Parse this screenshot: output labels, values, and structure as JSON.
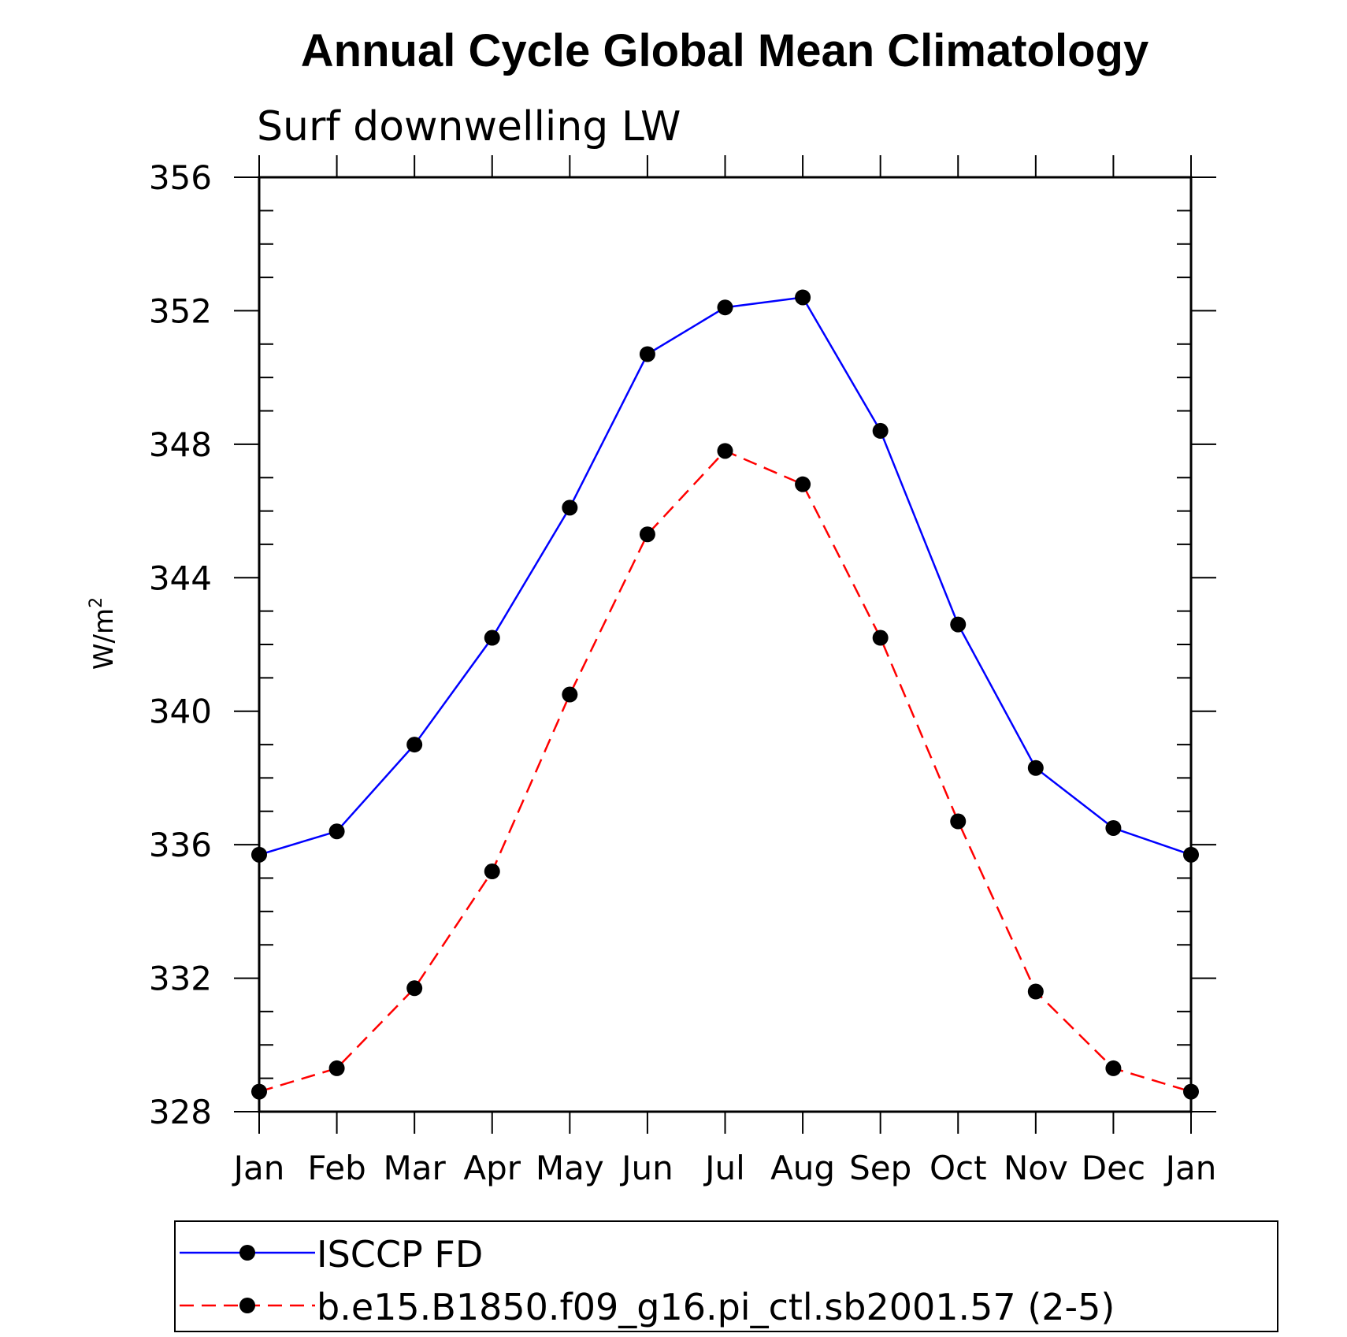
{
  "chart_data": {
    "type": "line",
    "title": "Annual Cycle Global Mean Climatology",
    "subtitle": "Surf downwelling LW",
    "ylabel": "W/m",
    "ylabel_sup": "2",
    "categories": [
      "Jan",
      "Feb",
      "Mar",
      "Apr",
      "May",
      "Jun",
      "Jul",
      "Aug",
      "Sep",
      "Oct",
      "Nov",
      "Dec",
      "Jan"
    ],
    "ylim": [
      328,
      356
    ],
    "yticks": [
      328,
      332,
      336,
      340,
      344,
      348,
      352,
      356
    ],
    "yminor_step": 1,
    "grid": false,
    "legend_position": "bottom",
    "series": [
      {
        "name": "ISCCP FD",
        "color": "#0000ff",
        "dash": "solid",
        "marker": "filled-circle",
        "values": [
          335.7,
          336.4,
          339.0,
          342.2,
          346.1,
          350.7,
          352.1,
          352.4,
          348.4,
          342.6,
          338.3,
          336.5,
          335.7
        ]
      },
      {
        "name": "b.e15.B1850.f09_g16.pi_ctl.sb2001.57 (2-5)",
        "color": "#ff0000",
        "dash": "dashed",
        "marker": "filled-circle",
        "values": [
          328.6,
          329.3,
          331.7,
          335.2,
          340.5,
          345.3,
          347.8,
          346.8,
          342.2,
          336.7,
          331.6,
          329.3,
          328.6
        ]
      }
    ]
  }
}
